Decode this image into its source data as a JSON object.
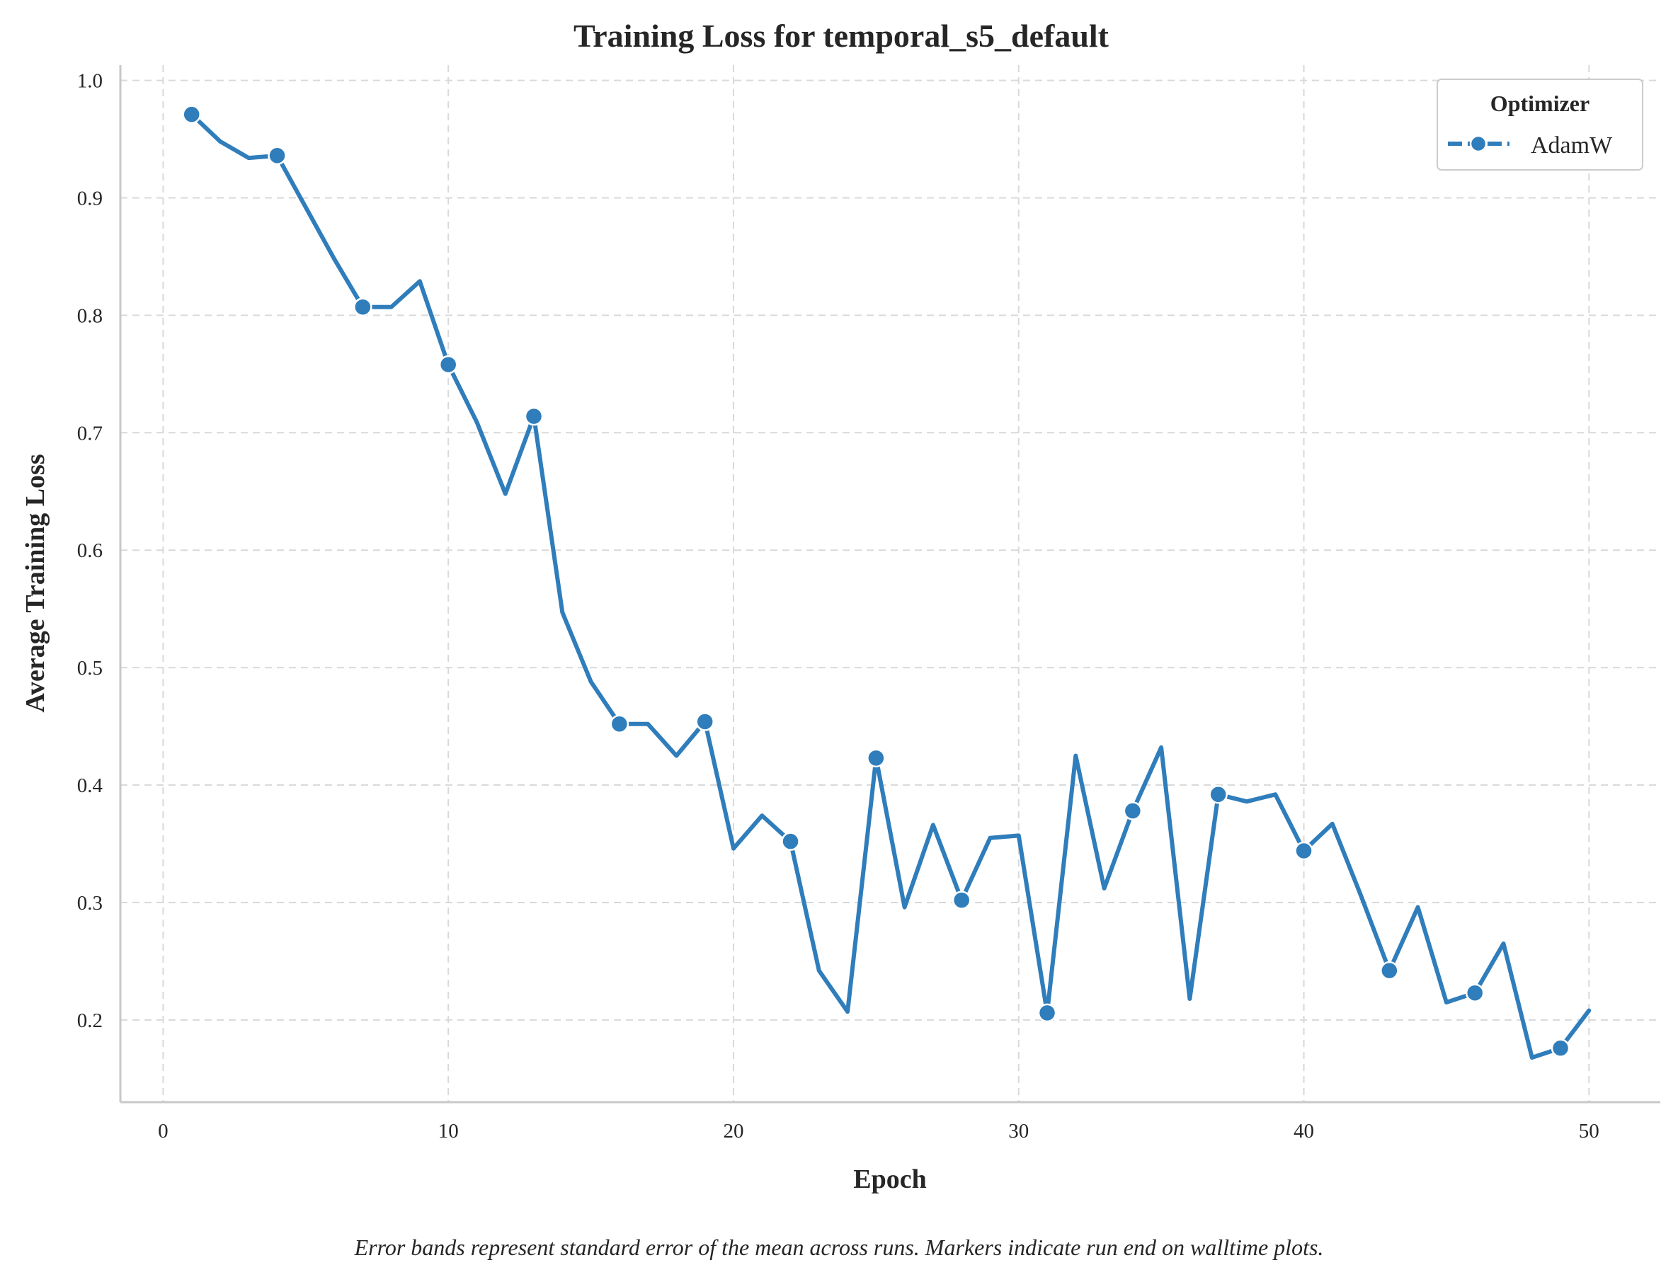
{
  "chart_data": {
    "type": "line",
    "title": "Training Loss for temporal_s5_default",
    "xlabel": "Epoch",
    "ylabel": "Average Training Loss",
    "xlim": [
      -1.5,
      52.5
    ],
    "ylim": [
      0.13,
      1.013
    ],
    "xticks": [
      0,
      10,
      20,
      30,
      40,
      50
    ],
    "yticks": [
      0.2,
      0.3,
      0.4,
      0.5,
      0.6,
      0.7,
      0.8,
      0.9,
      1.0
    ],
    "xtick_labels": [
      "0",
      "10",
      "20",
      "30",
      "40",
      "50"
    ],
    "ytick_labels": [
      "0.2",
      "0.3",
      "0.4",
      "0.5",
      "0.6",
      "0.7",
      "0.8",
      "0.9",
      "1.0"
    ],
    "grid": true,
    "legend": {
      "title": "Optimizer",
      "position": "top-right"
    },
    "series": [
      {
        "name": "AdamW",
        "color": "#2f7dbb",
        "marker_every": 3,
        "x": [
          1,
          2,
          3,
          4,
          5,
          6,
          7,
          8,
          9,
          10,
          11,
          12,
          13,
          14,
          15,
          16,
          17,
          18,
          19,
          20,
          21,
          22,
          23,
          24,
          25,
          26,
          27,
          28,
          29,
          30,
          31,
          32,
          33,
          34,
          35,
          36,
          37,
          38,
          39,
          40,
          41,
          42,
          43,
          44,
          45,
          46,
          47,
          48,
          49,
          50
        ],
        "y": [
          0.971,
          0.948,
          0.934,
          0.936,
          0.892,
          0.848,
          0.807,
          0.807,
          0.829,
          0.758,
          0.709,
          0.648,
          0.714,
          0.547,
          0.488,
          0.452,
          0.452,
          0.425,
          0.454,
          0.346,
          0.374,
          0.352,
          0.242,
          0.207,
          0.423,
          0.296,
          0.366,
          0.302,
          0.355,
          0.357,
          0.206,
          0.425,
          0.312,
          0.378,
          0.432,
          0.218,
          0.392,
          0.386,
          0.392,
          0.344,
          0.367,
          0.306,
          0.242,
          0.296,
          0.215,
          0.223,
          0.265,
          0.168,
          0.176,
          0.208
        ]
      }
    ]
  },
  "footnote": "Error bands represent standard error of the mean across runs. Markers indicate run end on walltime plots."
}
